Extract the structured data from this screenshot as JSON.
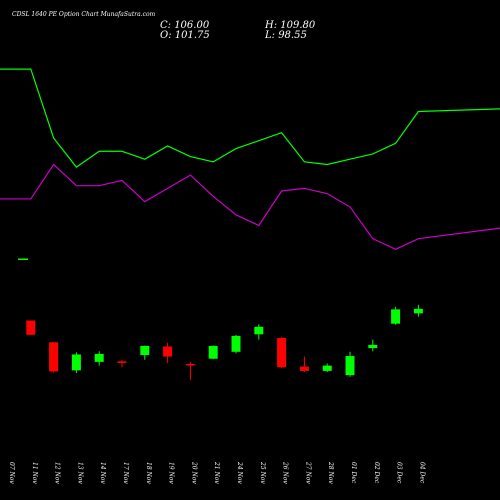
{
  "header": {
    "title": "CDSL 1640 PE Option  Chart MunafaSutra.com",
    "close": "C: 106.00",
    "high": "H: 109.80",
    "open": "O: 101.75",
    "low": "L: 98.55"
  },
  "chart_data": {
    "type": "candlestick",
    "categories": [
      "07 Nov",
      "11 Nov",
      "12 Nov",
      "13 Nov",
      "14 Nov",
      "17 Nov",
      "18 Nov",
      "19 Nov",
      "20 Nov",
      "21 Nov",
      "24 Nov",
      "25 Nov",
      "26 Nov",
      "27 Nov",
      "28 Nov",
      "01 Dec",
      "02 Dec",
      "03 Dec",
      "04 Dec"
    ],
    "ohlc": [
      {
        "o": null,
        "h": null,
        "l": null,
        "c": null
      },
      {
        "o": 95.0,
        "h": 95.0,
        "l": 81.5,
        "c": 81.5
      },
      {
        "o": 74.5,
        "h": 74.5,
        "l": 46.0,
        "c": 47.0
      },
      {
        "o": 48.0,
        "h": 65.0,
        "l": 45.5,
        "c": 63.0
      },
      {
        "o": 56.0,
        "h": 66.0,
        "l": 52.5,
        "c": 63.5
      },
      {
        "o": 56.5,
        "h": 58.0,
        "l": 51.0,
        "c": 55.0
      },
      {
        "o": 62.5,
        "h": 71.5,
        "l": 58.0,
        "c": 71.0
      },
      {
        "o": 70.5,
        "h": 74.0,
        "l": 55.0,
        "c": 61.0
      },
      {
        "o": 54.0,
        "h": 56.0,
        "l": 39.0,
        "c": 53.0
      },
      {
        "o": 59.0,
        "h": 71.5,
        "l": 58.5,
        "c": 71.0
      },
      {
        "o": 65.5,
        "h": 81.5,
        "l": 64.0,
        "c": 80.5
      },
      {
        "o": 82.0,
        "h": 91.5,
        "l": 77.0,
        "c": 89.0
      },
      {
        "o": 78.5,
        "h": 79.5,
        "l": 50.0,
        "c": 51.0
      },
      {
        "o": 51.5,
        "h": 61.0,
        "l": 46.5,
        "c": 47.5
      },
      {
        "o": 47.5,
        "h": 54.5,
        "l": 46.5,
        "c": 52.5
      },
      {
        "o": 43.5,
        "h": 65.5,
        "l": 42.0,
        "c": 61.5
      },
      {
        "o": 69.0,
        "h": 77.0,
        "l": 66.0,
        "c": 72.0
      },
      {
        "o": 92.0,
        "h": 108.0,
        "l": 91.0,
        "c": 105.5
      },
      {
        "o": 101.75,
        "h": 109.8,
        "l": 98.55,
        "c": 106.0
      }
    ],
    "up_color": "#00ff00",
    "down_color": "#ff0000",
    "line_series": [
      {
        "color": "#00ff00",
        "values": [
          98,
          98,
          72,
          61,
          67,
          67,
          64,
          69,
          65,
          63,
          68,
          71,
          74,
          63,
          62,
          64,
          66,
          70,
          82
        ]
      },
      {
        "color": "#cc00cc",
        "values": [
          49,
          49,
          62,
          54,
          54,
          56,
          48,
          53,
          58,
          50,
          43,
          39,
          52,
          53,
          51,
          46,
          34,
          30,
          34
        ]
      }
    ]
  }
}
